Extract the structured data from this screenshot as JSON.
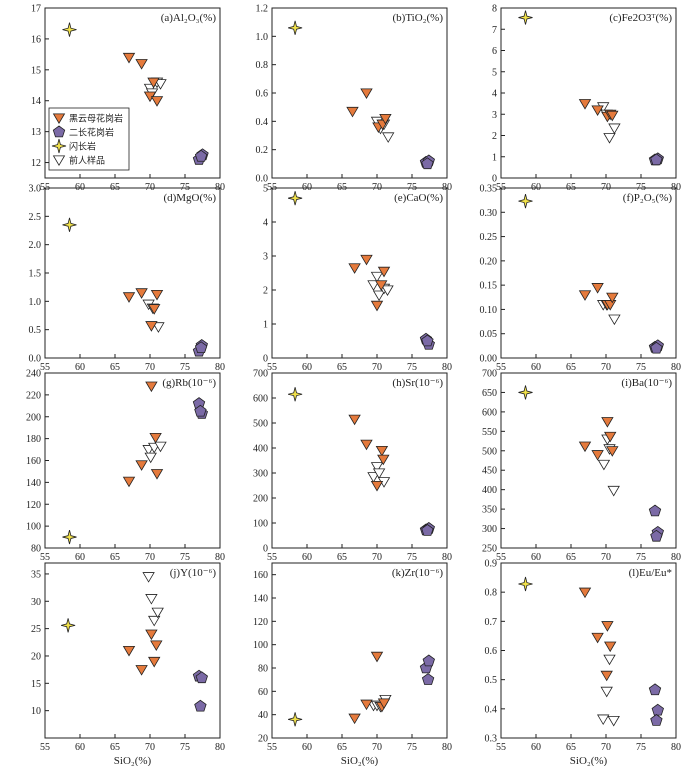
{
  "colors": {
    "biotite": "#e57a3c",
    "twomica": "#7b6aa6",
    "diorite": "#f2e24a",
    "previous": "#ffffff",
    "stroke": "#222222"
  },
  "legend": [
    {
      "key": "biotite",
      "label": "黑云母花岗岩"
    },
    {
      "key": "twomica",
      "label": "二长花岗岩"
    },
    {
      "key": "diorite",
      "label": "闪长岩"
    },
    {
      "key": "previous",
      "label": "前人样品"
    }
  ],
  "x_axis": {
    "label": "SiO₂(%)",
    "range": [
      55,
      80
    ],
    "ticks": [
      55,
      60,
      65,
      70,
      75,
      80
    ]
  },
  "chart_data": [
    {
      "type": "scatter",
      "title": "(a)Al₂O₃(%)",
      "ylim": [
        11.5,
        17
      ],
      "yticks": [
        12,
        13,
        14,
        15,
        16,
        17
      ],
      "xlabel": "",
      "series": [
        {
          "key": "biotite",
          "name": "黑云母花岗岩",
          "points": [
            [
              67,
              15.4
            ],
            [
              68.8,
              15.2
            ],
            [
              70.5,
              14.6
            ],
            [
              70,
              14.15
            ],
            [
              71,
              14.0
            ]
          ]
        },
        {
          "key": "twomica",
          "name": "二长花岗岩",
          "points": [
            [
              77,
              12.1
            ],
            [
              77.5,
              12.25
            ],
            [
              77.3,
              12.2
            ]
          ]
        },
        {
          "key": "diorite",
          "name": "闪长岩",
          "points": [
            [
              58.5,
              16.3
            ]
          ]
        },
        {
          "key": "previous",
          "name": "前人样品",
          "points": [
            [
              70,
              14.4
            ],
            [
              70.3,
              14.25
            ],
            [
              71,
              14.6
            ],
            [
              71.5,
              14.55
            ]
          ]
        }
      ]
    },
    {
      "type": "scatter",
      "title": "(b)TiO₂(%)",
      "ylim": [
        0,
        1.2
      ],
      "yticks": [
        0.0,
        0.2,
        0.4,
        0.6,
        0.8,
        1.0,
        1.2
      ],
      "xlabel": "",
      "series": [
        {
          "key": "biotite",
          "name": "黑云母花岗岩",
          "points": [
            [
              66.5,
              0.47
            ],
            [
              68.5,
              0.6
            ],
            [
              70.2,
              0.36
            ],
            [
              70.8,
              0.38
            ],
            [
              71.2,
              0.42
            ]
          ]
        },
        {
          "key": "twomica",
          "name": "二长花岗岩",
          "points": [
            [
              77,
              0.11
            ],
            [
              77.4,
              0.12
            ],
            [
              77.2,
              0.1
            ]
          ]
        },
        {
          "key": "diorite",
          "name": "闪长岩",
          "points": [
            [
              58.3,
              1.06
            ]
          ]
        },
        {
          "key": "previous",
          "name": "前人样品",
          "points": [
            [
              70,
              0.4
            ],
            [
              70.5,
              0.35
            ],
            [
              71,
              0.38
            ],
            [
              71.6,
              0.29
            ]
          ]
        }
      ]
    },
    {
      "type": "scatter",
      "title": "(c)Fe2O3ᵀ(%)",
      "ylim": [
        0,
        8
      ],
      "yticks": [
        0,
        1,
        2,
        3,
        4,
        5,
        6,
        7,
        8
      ],
      "xlabel": "",
      "series": [
        {
          "key": "biotite",
          "name": "黑云母花岗岩",
          "points": [
            [
              67,
              3.5
            ],
            [
              68.8,
              3.2
            ],
            [
              70.2,
              2.9
            ],
            [
              70.6,
              3.0
            ],
            [
              70.9,
              2.95
            ]
          ]
        },
        {
          "key": "twomica",
          "name": "二长花岗岩",
          "points": [
            [
              77,
              0.85
            ],
            [
              77.4,
              0.9
            ],
            [
              77.2,
              0.85
            ]
          ]
        },
        {
          "key": "diorite",
          "name": "闪长岩",
          "points": [
            [
              58.5,
              7.55
            ]
          ]
        },
        {
          "key": "previous",
          "name": "前人样品",
          "points": [
            [
              69.6,
              3.35
            ],
            [
              70.1,
              3.0
            ],
            [
              70.5,
              1.9
            ],
            [
              71.2,
              2.35
            ]
          ]
        }
      ]
    },
    {
      "type": "scatter",
      "title": "(d)MgO(%)",
      "ylim": [
        0,
        3.0
      ],
      "yticks": [
        0.0,
        0.5,
        1.0,
        1.5,
        2.0,
        2.5,
        3.0
      ],
      "xlabel": "",
      "series": [
        {
          "key": "biotite",
          "name": "黑云母花岗岩",
          "points": [
            [
              67,
              1.08
            ],
            [
              68.8,
              1.15
            ],
            [
              70.2,
              0.57
            ],
            [
              70.6,
              0.87
            ],
            [
              71,
              1.12
            ]
          ]
        },
        {
          "key": "twomica",
          "name": "二长花岗岩",
          "points": [
            [
              77,
              0.12
            ],
            [
              77.4,
              0.22
            ],
            [
              77.3,
              0.18
            ]
          ]
        },
        {
          "key": "diorite",
          "name": "闪长岩",
          "points": [
            [
              58.5,
              2.35
            ]
          ]
        },
        {
          "key": "previous",
          "name": "前人样品",
          "points": [
            [
              69.8,
              0.95
            ],
            [
              70.4,
              0.88
            ],
            [
              71.2,
              0.55
            ]
          ]
        }
      ]
    },
    {
      "type": "scatter",
      "title": "(e)CaO(%)",
      "ylim": [
        0,
        5
      ],
      "yticks": [
        0,
        1,
        2,
        3,
        4,
        5
      ],
      "xlabel": "",
      "series": [
        {
          "key": "biotite",
          "name": "黑云母花岗岩",
          "points": [
            [
              66.8,
              2.65
            ],
            [
              68.5,
              2.9
            ],
            [
              70,
              1.55
            ],
            [
              70.6,
              2.15
            ],
            [
              71,
              2.55
            ]
          ]
        },
        {
          "key": "twomica",
          "name": "二长花岗岩",
          "points": [
            [
              77,
              0.55
            ],
            [
              77.4,
              0.4
            ],
            [
              77.2,
              0.5
            ]
          ]
        },
        {
          "key": "diorite",
          "name": "闪长岩",
          "points": [
            [
              58.3,
              4.7
            ]
          ]
        },
        {
          "key": "previous",
          "name": "前人样品",
          "points": [
            [
              69.5,
              2.15
            ],
            [
              70,
              2.4
            ],
            [
              70.3,
              1.85
            ],
            [
              71,
              2.05
            ],
            [
              71.5,
              2.0
            ]
          ]
        }
      ]
    },
    {
      "type": "scatter",
      "title": "(f)P₂O₅(%)",
      "ylim": [
        0,
        0.35
      ],
      "yticks": [
        0.0,
        0.05,
        0.1,
        0.15,
        0.2,
        0.25,
        0.3,
        0.35
      ],
      "xlabel": "",
      "series": [
        {
          "key": "biotite",
          "name": "黑云母花岗岩",
          "points": [
            [
              67,
              0.13
            ],
            [
              68.8,
              0.145
            ],
            [
              70.2,
              0.11
            ],
            [
              70.6,
              0.11
            ],
            [
              70.9,
              0.125
            ]
          ]
        },
        {
          "key": "twomica",
          "name": "二长花岗岩",
          "points": [
            [
              77,
              0.022
            ],
            [
              77.4,
              0.025
            ],
            [
              77.2,
              0.02
            ]
          ]
        },
        {
          "key": "diorite",
          "name": "闪长岩",
          "points": [
            [
              58.5,
              0.323
            ]
          ]
        },
        {
          "key": "previous",
          "name": "前人样品",
          "points": [
            [
              69.6,
              0.11
            ],
            [
              70.1,
              0.11
            ],
            [
              71.2,
              0.08
            ]
          ]
        }
      ]
    },
    {
      "type": "scatter",
      "title": "(g)Rb(10⁻⁶)",
      "ylim": [
        80,
        240
      ],
      "yticks": [
        80,
        100,
        120,
        140,
        160,
        180,
        200,
        220,
        240
      ],
      "xlabel": "",
      "series": [
        {
          "key": "biotite",
          "name": "黑云母花岗岩",
          "points": [
            [
              67,
              141
            ],
            [
              68.8,
              156
            ],
            [
              70.2,
              228
            ],
            [
              70.8,
              181
            ],
            [
              71,
              148
            ]
          ]
        },
        {
          "key": "twomica",
          "name": "二长花岗岩",
          "points": [
            [
              77,
              212
            ],
            [
              77.4,
              203
            ],
            [
              77.2,
              205
            ]
          ]
        },
        {
          "key": "diorite",
          "name": "闪长岩",
          "points": [
            [
              58.5,
              90
            ]
          ]
        },
        {
          "key": "previous",
          "name": "前人样品",
          "points": [
            [
              69.8,
              170
            ],
            [
              70.1,
              163
            ],
            [
              70.6,
              172
            ],
            [
              71.5,
              173
            ]
          ]
        }
      ]
    },
    {
      "type": "scatter",
      "title": "(h)Sr(10⁻⁶)",
      "ylim": [
        0,
        700
      ],
      "yticks": [
        0,
        100,
        200,
        300,
        400,
        500,
        600,
        700
      ],
      "xlabel": "",
      "series": [
        {
          "key": "biotite",
          "name": "黑云母花岗岩",
          "points": [
            [
              66.8,
              515
            ],
            [
              68.5,
              415
            ],
            [
              70,
              250
            ],
            [
              70.7,
              390
            ],
            [
              70.9,
              355
            ]
          ]
        },
        {
          "key": "twomica",
          "name": "二长花岗岩",
          "points": [
            [
              77,
              72
            ],
            [
              77.4,
              78
            ],
            [
              77.2,
              70
            ]
          ]
        },
        {
          "key": "diorite",
          "name": "闪长岩",
          "points": [
            [
              58.3,
              615
            ]
          ]
        },
        {
          "key": "previous",
          "name": "前人样品",
          "points": [
            [
              69.5,
              285
            ],
            [
              70,
              325
            ],
            [
              70.3,
              300
            ],
            [
              71,
              265
            ]
          ]
        }
      ]
    },
    {
      "type": "scatter",
      "title": "(i)Ba(10⁻⁶)",
      "ylim": [
        250,
        700
      ],
      "yticks": [
        250,
        300,
        350,
        400,
        450,
        500,
        550,
        600,
        650,
        700
      ],
      "xlabel": "",
      "series": [
        {
          "key": "biotite",
          "name": "黑云母花岗岩",
          "points": [
            [
              67,
              512
            ],
            [
              68.8,
              490
            ],
            [
              70.2,
              575
            ],
            [
              70.6,
              537
            ],
            [
              70.9,
              500
            ]
          ]
        },
        {
          "key": "twomica",
          "name": "二长花岗岩",
          "points": [
            [
              77,
              345
            ],
            [
              77.4,
              290
            ],
            [
              77.2,
              280
            ]
          ]
        },
        {
          "key": "diorite",
          "name": "闪长岩",
          "points": [
            [
              58.5,
              650
            ]
          ]
        },
        {
          "key": "previous",
          "name": "前人样品",
          "points": [
            [
              69.7,
              465
            ],
            [
              70.2,
              530
            ],
            [
              70.5,
              505
            ],
            [
              71.1,
              398
            ]
          ]
        }
      ]
    },
    {
      "type": "scatter",
      "title": "(j)Y(10⁻⁶)",
      "ylim": [
        5,
        37
      ],
      "yticks": [
        10,
        15,
        20,
        25,
        30,
        35
      ],
      "xlabel": "SiO₂(%)",
      "series": [
        {
          "key": "biotite",
          "name": "黑云母花岗岩",
          "points": [
            [
              67,
              21
            ],
            [
              68.8,
              17.5
            ],
            [
              70.2,
              24
            ],
            [
              70.6,
              19
            ],
            [
              70.9,
              22
            ]
          ]
        },
        {
          "key": "twomica",
          "name": "二长花岗岩",
          "points": [
            [
              77,
              16.3
            ],
            [
              77.4,
              16
            ],
            [
              77.2,
              10.8
            ]
          ]
        },
        {
          "key": "diorite",
          "name": "闪长岩",
          "points": [
            [
              58.3,
              25.6
            ]
          ]
        },
        {
          "key": "previous",
          "name": "前人样品",
          "points": [
            [
              69.8,
              34.5
            ],
            [
              70.2,
              30.5
            ],
            [
              70.6,
              26.5
            ],
            [
              71.1,
              28
            ]
          ]
        }
      ]
    },
    {
      "type": "scatter",
      "title": "(k)Zr(10⁻⁶)",
      "ylim": [
        20,
        170
      ],
      "yticks": [
        20,
        40,
        60,
        80,
        100,
        120,
        140,
        160
      ],
      "xlabel": "SiO₂(%)",
      "series": [
        {
          "key": "biotite",
          "name": "黑云母花岗岩",
          "points": [
            [
              66.8,
              37
            ],
            [
              68.5,
              49
            ],
            [
              70,
              90
            ],
            [
              70.7,
              47
            ],
            [
              71,
              50
            ]
          ]
        },
        {
          "key": "twomica",
          "name": "二长花岗岩",
          "points": [
            [
              77,
              80
            ],
            [
              77.4,
              86
            ],
            [
              77.3,
              70
            ]
          ]
        },
        {
          "key": "diorite",
          "name": "闪长岩",
          "points": [
            [
              58.3,
              36
            ]
          ]
        },
        {
          "key": "previous",
          "name": "前人样品",
          "points": [
            [
              69.5,
              48
            ],
            [
              70,
              48
            ],
            [
              70.5,
              47
            ],
            [
              71.2,
              53
            ]
          ]
        }
      ]
    },
    {
      "type": "scatter",
      "title": "(l)Eu/Eu*",
      "ylim": [
        0.3,
        0.9
      ],
      "yticks": [
        0.3,
        0.4,
        0.5,
        0.6,
        0.7,
        0.8,
        0.9
      ],
      "xlabel": "SiO₂(%)",
      "series": [
        {
          "key": "biotite",
          "name": "黑云母花岗岩",
          "points": [
            [
              67,
              0.8
            ],
            [
              68.8,
              0.645
            ],
            [
              70.2,
              0.685
            ],
            [
              70.6,
              0.615
            ],
            [
              70.1,
              0.515
            ]
          ]
        },
        {
          "key": "twomica",
          "name": "二长花岗岩",
          "points": [
            [
              77,
              0.465
            ],
            [
              77.4,
              0.395
            ],
            [
              77.2,
              0.36
            ]
          ]
        },
        {
          "key": "diorite",
          "name": "闪长岩",
          "points": [
            [
              58.5,
              0.828
            ]
          ]
        },
        {
          "key": "previous",
          "name": "前人样品",
          "points": [
            [
              69.6,
              0.365
            ],
            [
              70.1,
              0.46
            ],
            [
              70.5,
              0.57
            ],
            [
              71.1,
              0.36
            ]
          ]
        }
      ]
    }
  ]
}
